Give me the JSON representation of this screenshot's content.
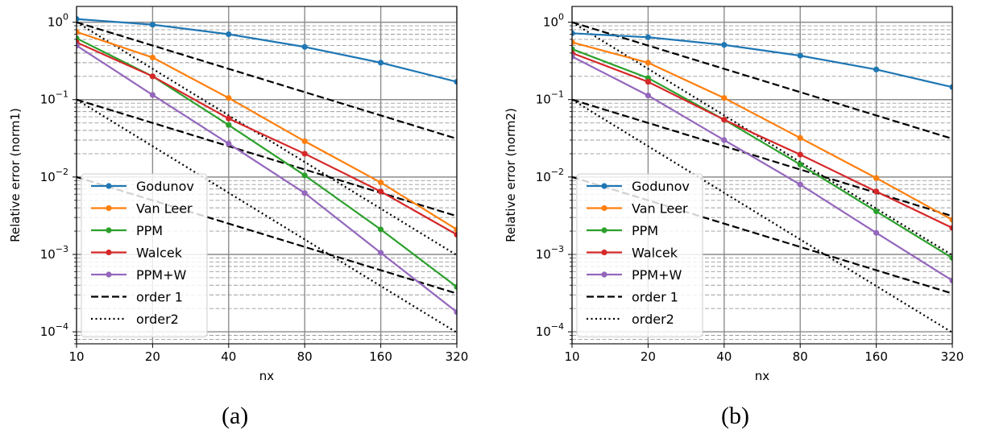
{
  "chart_data": [
    {
      "type": "line",
      "panel": "a",
      "caption": "(a)",
      "xlabel": "nx",
      "ylabel": "Relative error (norm1)",
      "x": [
        10,
        20,
        40,
        80,
        160,
        320
      ],
      "x_tick_labels": [
        "10",
        "20",
        "40",
        "80",
        "160",
        "320"
      ],
      "xscale": "log2",
      "yscale": "log10",
      "ylim": [
        7e-05,
        1.6
      ],
      "y_ticks": [
        {
          "base": "10",
          "exp": "0",
          "value": 1
        },
        {
          "base": "10",
          "exp": "−1",
          "value": 0.1
        },
        {
          "base": "10",
          "exp": "−2",
          "value": 0.01
        },
        {
          "base": "10",
          "exp": "−3",
          "value": 0.001
        },
        {
          "base": "10",
          "exp": "−4",
          "value": 0.0001
        }
      ],
      "grid": true,
      "legend_position": "bottom-left",
      "series": [
        {
          "name": "Godunov",
          "color": "#1f77b4",
          "style": "solid-marker",
          "values": [
            1.1,
            0.93,
            0.7,
            0.48,
            0.3,
            0.17
          ]
        },
        {
          "name": "Van Leer",
          "color": "#ff7f0e",
          "style": "solid-marker",
          "values": [
            0.75,
            0.35,
            0.105,
            0.029,
            0.0085,
            0.0021
          ]
        },
        {
          "name": "PPM",
          "color": "#2ca02c",
          "style": "solid-marker",
          "values": [
            0.62,
            0.2,
            0.047,
            0.0105,
            0.0021,
            0.00038
          ]
        },
        {
          "name": "Walcek",
          "color": "#d62728",
          "style": "solid-marker",
          "values": [
            0.55,
            0.2,
            0.057,
            0.02,
            0.0065,
            0.0018
          ]
        },
        {
          "name": "PPM+W",
          "color": "#9467bd",
          "style": "solid-marker",
          "values": [
            0.5,
            0.115,
            0.027,
            0.0062,
            0.00105,
            0.00018
          ]
        },
        {
          "name": "order 1",
          "color": "#000000",
          "style": "dashed",
          "lines": [
            [
              1.0,
              0.5,
              0.25,
              0.125,
              0.0625,
              0.03125
            ],
            [
              0.1,
              0.05,
              0.025,
              0.0125,
              0.00625,
              0.003125
            ],
            [
              0.01,
              0.005,
              0.0025,
              0.00125,
              0.000625,
              0.0003125
            ]
          ]
        },
        {
          "name": "order2",
          "color": "#000000",
          "style": "dotted",
          "lines": [
            [
              1.0,
              0.25,
              0.0625,
              0.015625,
              0.00390625,
              0.0009765625
            ],
            [
              0.1,
              0.025,
              0.00625,
              0.0015625,
              0.000390625,
              9.765625e-05
            ]
          ]
        }
      ]
    },
    {
      "type": "line",
      "panel": "b",
      "caption": "(b)",
      "xlabel": "nx",
      "ylabel": "Relative error (norm2)",
      "x": [
        10,
        20,
        40,
        80,
        160,
        320
      ],
      "x_tick_labels": [
        "10",
        "20",
        "40",
        "80",
        "160",
        "320"
      ],
      "xscale": "log2",
      "yscale": "log10",
      "ylim": [
        7e-05,
        1.6
      ],
      "y_ticks": [
        {
          "base": "10",
          "exp": "0",
          "value": 1
        },
        {
          "base": "10",
          "exp": "−1",
          "value": 0.1
        },
        {
          "base": "10",
          "exp": "−2",
          "value": 0.01
        },
        {
          "base": "10",
          "exp": "−3",
          "value": 0.001
        },
        {
          "base": "10",
          "exp": "−4",
          "value": 0.0001
        }
      ],
      "grid": true,
      "legend_position": "bottom-left",
      "series": [
        {
          "name": "Godunov",
          "color": "#1f77b4",
          "style": "solid-marker",
          "values": [
            0.72,
            0.64,
            0.51,
            0.37,
            0.245,
            0.145
          ]
        },
        {
          "name": "Van Leer",
          "color": "#ff7f0e",
          "style": "solid-marker",
          "values": [
            0.55,
            0.3,
            0.105,
            0.032,
            0.0097,
            0.0028
          ]
        },
        {
          "name": "PPM",
          "color": "#2ca02c",
          "style": "solid-marker",
          "values": [
            0.45,
            0.19,
            0.055,
            0.0145,
            0.0036,
            0.0009
          ]
        },
        {
          "name": "Walcek",
          "color": "#d62728",
          "style": "solid-marker",
          "values": [
            0.4,
            0.17,
            0.055,
            0.0195,
            0.0065,
            0.0022
          ]
        },
        {
          "name": "PPM+W",
          "color": "#9467bd",
          "style": "solid-marker",
          "values": [
            0.36,
            0.113,
            0.03,
            0.008,
            0.0019,
            0.00046
          ]
        },
        {
          "name": "order 1",
          "color": "#000000",
          "style": "dashed",
          "lines": [
            [
              1.0,
              0.5,
              0.25,
              0.125,
              0.0625,
              0.03125
            ],
            [
              0.1,
              0.05,
              0.025,
              0.0125,
              0.00625,
              0.003125
            ],
            [
              0.01,
              0.005,
              0.0025,
              0.00125,
              0.000625,
              0.0003125
            ]
          ]
        },
        {
          "name": "order2",
          "color": "#000000",
          "style": "dotted",
          "lines": [
            [
              1.0,
              0.25,
              0.0625,
              0.015625,
              0.00390625,
              0.0009765625
            ],
            [
              0.1,
              0.025,
              0.00625,
              0.0015625,
              0.000390625,
              9.765625e-05
            ]
          ]
        }
      ]
    }
  ]
}
